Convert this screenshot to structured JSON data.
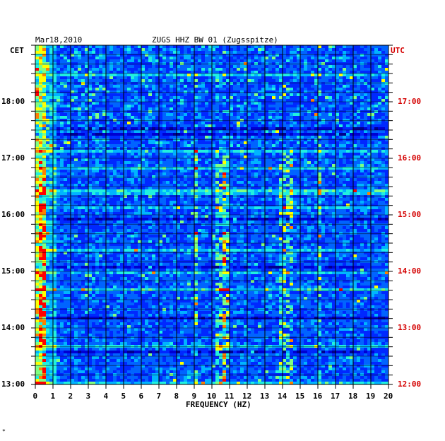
{
  "chart_data": {
    "type": "heatmap",
    "date": "Mar18,2010",
    "title": "ZUGS HHZ BW 01 (Zugsspitze)",
    "left_axis_label": "CET",
    "right_axis_label": "UTC",
    "xlabel": "FREQUENCY (HZ)",
    "xlim": [
      0,
      20
    ],
    "x_ticks": [
      "0",
      "1",
      "2",
      "3",
      "4",
      "5",
      "6",
      "7",
      "8",
      "9",
      "10",
      "11",
      "12",
      "13",
      "14",
      "15",
      "16",
      "17",
      "18",
      "19",
      "20"
    ],
    "cet_ticks": [
      "18:00",
      "17:00",
      "16:00",
      "15:00",
      "14:00",
      "13:00"
    ],
    "utc_ticks": [
      "17:00",
      "16:00",
      "15:00",
      "14:00",
      "13:00",
      "12:00"
    ],
    "time_range_cet": [
      "13:00",
      "19:00"
    ],
    "colormap": [
      "#00008c",
      "#0000d2",
      "#0028ff",
      "#0064ff",
      "#00b4ff",
      "#20f0e0",
      "#80ff80",
      "#ffff00",
      "#ff8000",
      "#ff0000"
    ],
    "persistent_bands_hz": [
      0.3,
      9.0,
      10.2,
      10.5,
      10.7,
      13.9,
      14.3,
      16.0
    ],
    "footnote": "*"
  }
}
